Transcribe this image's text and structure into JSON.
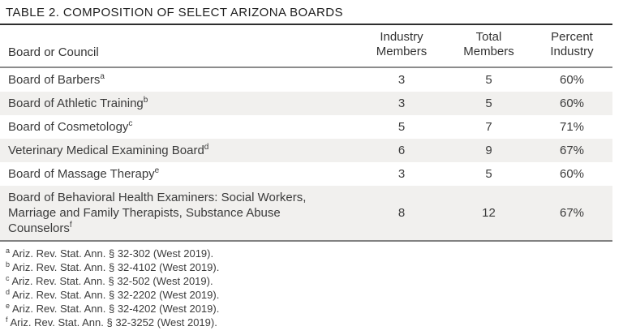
{
  "title": "TABLE 2. COMPOSITION OF SELECT ARIZONA BOARDS",
  "table": {
    "columns": {
      "board": "Board or Council",
      "industry_members": "Industry Members",
      "total_members": "Total Members",
      "percent_industry": "Percent Industry"
    },
    "rows": [
      {
        "board": "Board of Barbers",
        "note": "a",
        "industry_members": "3",
        "total_members": "5",
        "percent_industry": "60%",
        "shaded": false
      },
      {
        "board": "Board of Athletic Training",
        "note": "b",
        "industry_members": "3",
        "total_members": "5",
        "percent_industry": "60%",
        "shaded": true
      },
      {
        "board": "Board of Cosmetology",
        "note": "c",
        "industry_members": "5",
        "total_members": "7",
        "percent_industry": "71%",
        "shaded": false
      },
      {
        "board": "Veterinary Medical Examining Board",
        "note": "d",
        "industry_members": "6",
        "total_members": "9",
        "percent_industry": "67%",
        "shaded": true
      },
      {
        "board": "Board of Massage Therapy",
        "note": "e",
        "industry_members": "3",
        "total_members": "5",
        "percent_industry": "60%",
        "shaded": false
      },
      {
        "board": "Board of Behavioral Health Examiners: Social Workers, Marriage and Family Therapists, Substance Abuse Counselors",
        "note": "f",
        "industry_members": "8",
        "total_members": "12",
        "percent_industry": "67%",
        "shaded": true
      }
    ]
  },
  "footnotes": [
    {
      "marker": "a",
      "text": "Ariz. Rev. Stat. Ann. § 32-302 (West 2019)."
    },
    {
      "marker": "b",
      "text": "Ariz. Rev. Stat. Ann. § 32-4102 (West 2019)."
    },
    {
      "marker": "c",
      "text": "Ariz. Rev. Stat. Ann. § 32-502 (West 2019)."
    },
    {
      "marker": "d",
      "text": "Ariz. Rev. Stat. Ann. § 32-2202 (West 2019)."
    },
    {
      "marker": "e",
      "text": "Ariz. Rev. Stat. Ann. § 32-4202 (West 2019)."
    },
    {
      "marker": "f",
      "text": "Ariz. Rev. Stat. Ann. § 32-3252 (West 2019)."
    }
  ],
  "colors": {
    "row_shade": "#f1f0ee",
    "body_text": "#3b3b3b",
    "title_text": "#1e1e1e",
    "title_rule": "#2e2e2e",
    "gray_rule": "#8c8c8c"
  }
}
